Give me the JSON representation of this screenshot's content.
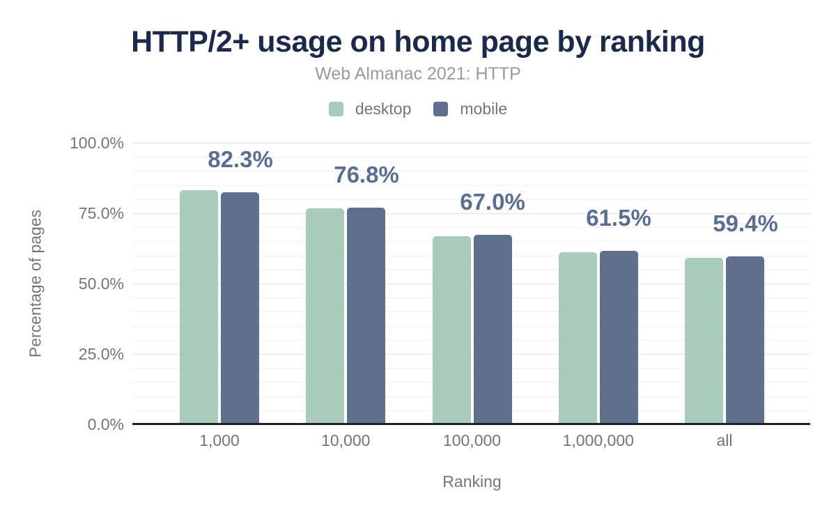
{
  "chart_data": {
    "type": "bar",
    "title": "HTTP/2+ usage on home page by ranking",
    "subtitle": "Web Almanac 2021: HTTP",
    "xlabel": "Ranking",
    "ylabel": "Percentage of pages",
    "categories": [
      "1,000",
      "10,000",
      "100,000",
      "1,000,000",
      "all"
    ],
    "series": [
      {
        "name": "desktop",
        "color": "#a9cbbb",
        "values": [
          83.0,
          76.4,
          66.7,
          61.0,
          59.0
        ]
      },
      {
        "name": "mobile",
        "color": "#5f708c",
        "values": [
          82.3,
          76.8,
          67.0,
          61.5,
          59.4
        ]
      }
    ],
    "bar_labels": [
      "82.3%",
      "76.8%",
      "67.0%",
      "61.5%",
      "59.4%"
    ],
    "bar_labels_series": "mobile",
    "ylim": [
      0,
      100
    ],
    "yticks": [
      {
        "value": 100,
        "label": "100.0%"
      },
      {
        "value": 75,
        "label": "75.0%"
      },
      {
        "value": 50,
        "label": "50.0%"
      },
      {
        "value": 25,
        "label": "25.0%"
      },
      {
        "value": 0,
        "label": "0.0%"
      }
    ],
    "grid": {
      "horizontal": true,
      "minor_step_pct": 5,
      "major_step_pct": 25
    },
    "legend_position": "top"
  },
  "style": {
    "background": "#ffffff",
    "title_color": "#1b2a4a",
    "subtitle_color": "#9a9a9e",
    "axis_text_color": "#757575",
    "value_label_color": "#5a6e91",
    "gridline_minor_color": "#f0f0f0",
    "gridline_major_color": "#e4e4e4",
    "axis_line_color": "#222222"
  }
}
